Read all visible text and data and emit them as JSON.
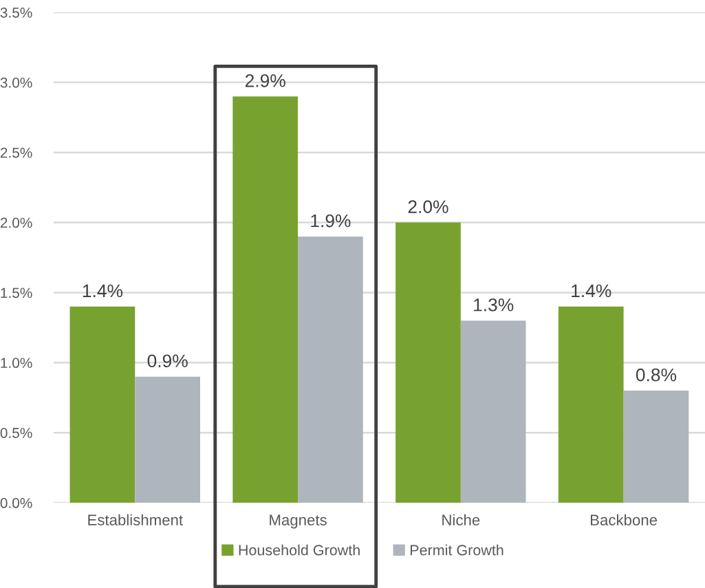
{
  "chart_data": {
    "type": "bar",
    "categories": [
      "Establishment",
      "Magnets",
      "Niche",
      "Backbone"
    ],
    "series": [
      {
        "name": "Household Growth",
        "color": "#78a22f",
        "values": [
          1.4,
          2.9,
          2.0,
          1.4
        ],
        "value_labels": [
          "1.4%",
          "2.9%",
          "2.0%",
          "1.4%"
        ]
      },
      {
        "name": "Permit Growth",
        "color": "#afb5bc",
        "values": [
          0.9,
          1.9,
          1.3,
          0.8
        ],
        "value_labels": [
          "0.9%",
          "1.9%",
          "1.3%",
          "0.8%"
        ]
      }
    ],
    "ylim": [
      0,
      3.5
    ],
    "yticks": [
      {
        "value": 0,
        "label": "0.0%"
      },
      {
        "value": 0.5,
        "label": "0.5%"
      },
      {
        "value": 1.0,
        "label": "1.0%"
      },
      {
        "value": 1.5,
        "label": "1.5%"
      },
      {
        "value": 2.0,
        "label": "2.0%"
      },
      {
        "value": 2.5,
        "label": "2.5%"
      },
      {
        "value": 3.0,
        "label": "3.0%"
      },
      {
        "value": 3.5,
        "label": "3.5%"
      }
    ],
    "grid": "y",
    "legend": "bottom"
  }
}
